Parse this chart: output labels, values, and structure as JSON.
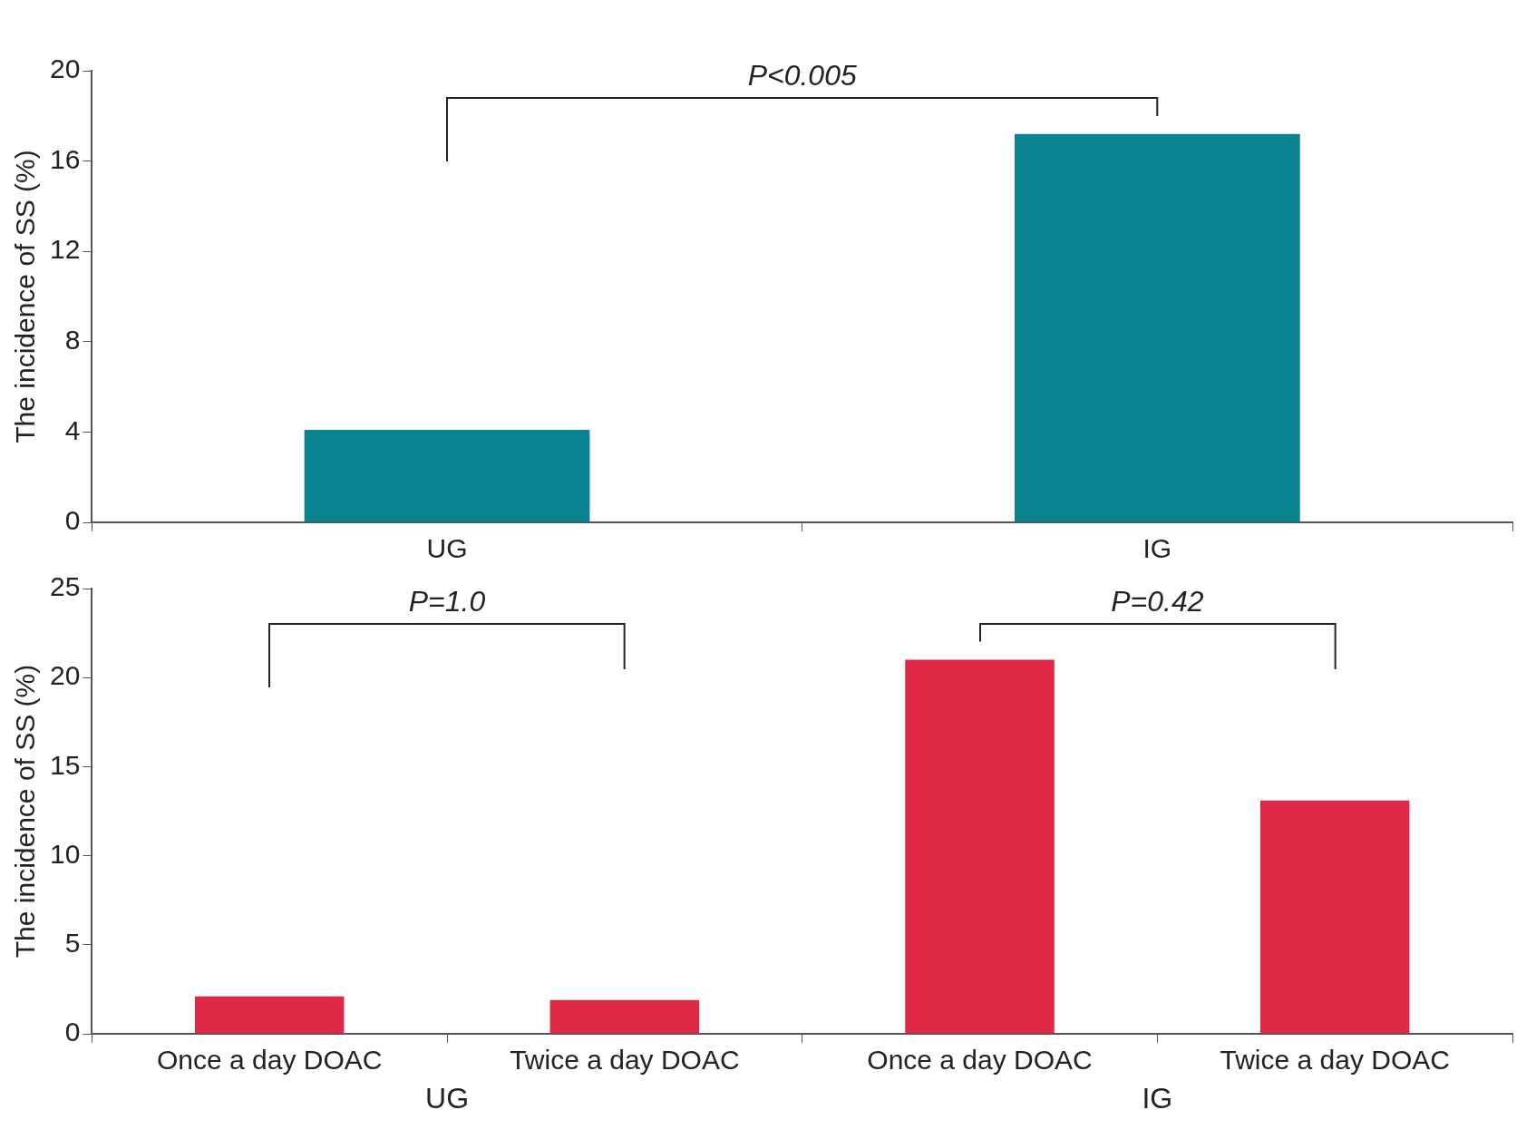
{
  "chart_data": [
    {
      "type": "bar",
      "categories": [
        "UG",
        "IG"
      ],
      "values": [
        4.1,
        17.2
      ],
      "color": "#0a8290",
      "ylabel": "The incidence of SS (%)",
      "ylim": [
        0,
        20
      ],
      "yticks": [
        0,
        4,
        8,
        12,
        16,
        20
      ],
      "grid": false,
      "legend": false,
      "annotations": [
        "P<0.005"
      ]
    },
    {
      "type": "bar",
      "categories": [
        "Once a day DOAC",
        "Twice a day DOAC",
        "Once a day DOAC",
        "Twice a day DOAC"
      ],
      "values": [
        2.1,
        1.9,
        21.0,
        13.1
      ],
      "color": "#e02846",
      "ylabel": "The incidence of SS (%)",
      "ylim": [
        0,
        25
      ],
      "yticks": [
        0,
        5,
        10,
        15,
        20,
        25
      ],
      "grid": false,
      "legend": false,
      "annotations": [
        "P=1.0",
        "P=0.42",
        "UG",
        "IG"
      ]
    }
  ]
}
